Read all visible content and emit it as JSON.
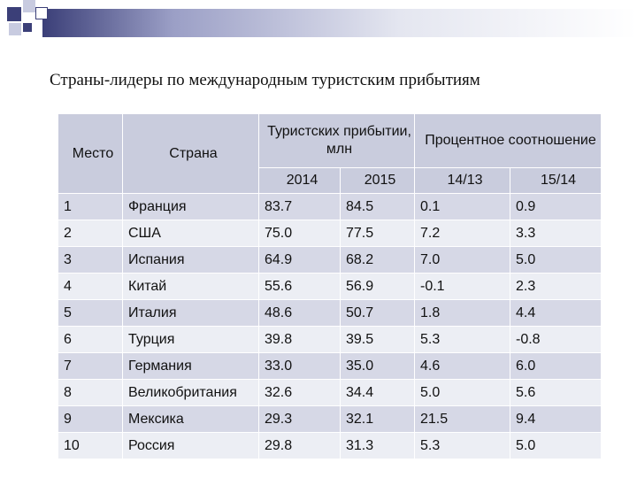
{
  "title": "Страны-лидеры по международным туристским прибытиям",
  "table": {
    "headers": {
      "place": "Место",
      "country": "Страна",
      "arrivals": "Туристских прибытии, млн",
      "ratio": "Процентное соотношение",
      "sub": [
        "2014",
        "2015",
        "14/13",
        "15/14"
      ]
    },
    "rows": [
      [
        "1",
        "Франция",
        "83.7",
        "84.5",
        "0.1",
        "0.9"
      ],
      [
        "2",
        "США",
        "75.0",
        "77.5",
        "7.2",
        "3.3"
      ],
      [
        "3",
        "Испания",
        "64.9",
        "68.2",
        "7.0",
        "5.0"
      ],
      [
        "4",
        "Китай",
        "55.6",
        "56.9",
        "-0.1",
        "2.3"
      ],
      [
        "5",
        "Италия",
        "48.6",
        "50.7",
        "1.8",
        "4.4"
      ],
      [
        "6",
        "Турция",
        "39.8",
        "39.5",
        "5.3",
        "-0.8"
      ],
      [
        "7",
        "Германия",
        "33.0",
        "35.0",
        "4.6",
        "6.0"
      ],
      [
        "8",
        "Великобритания",
        "32.6",
        "34.4",
        "5.0",
        "5.6"
      ],
      [
        "9",
        "Мексика",
        "29.3",
        "32.1",
        "21.5",
        "9.4"
      ],
      [
        "10",
        "Россия",
        "29.8",
        "31.3",
        "5.3",
        "5.0"
      ]
    ]
  },
  "colors": {
    "accent_dark": "#3b3f78",
    "row_dark": "#d6d8e6",
    "row_light": "#eceef4",
    "header_bg": "#c9ccdd"
  }
}
